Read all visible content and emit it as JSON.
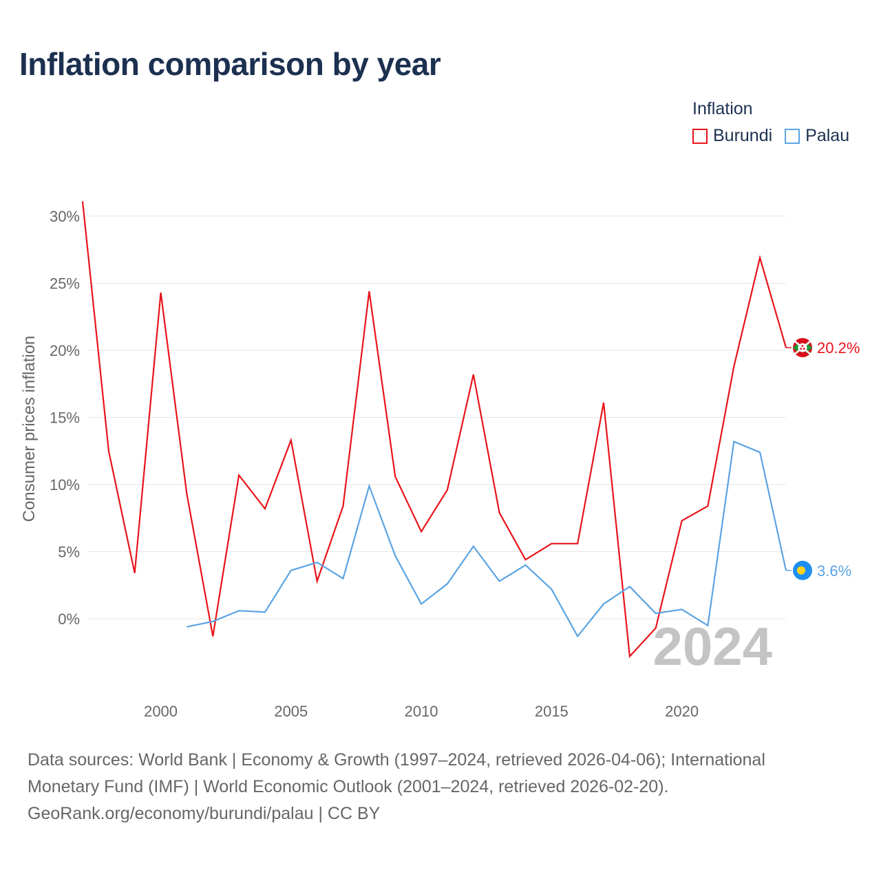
{
  "title": "Inflation comparison by year",
  "legend": {
    "title": "Inflation",
    "items": [
      {
        "label": "Burundi",
        "color": "#e8131a"
      },
      {
        "label": "Palau",
        "color": "#5aa3e3"
      }
    ]
  },
  "footer": {
    "line1": "Data sources: World Bank | Economy & Growth (1997–2024, retrieved 2026-04-06); International",
    "line2": "Monetary Fund (IMF) | World Economic Outlook (2001–2024, retrieved 2026-02-20).",
    "line3": "GeoRank.org/economy/burundi/palau | CC BY"
  },
  "chart_data": {
    "type": "line",
    "title": "Inflation comparison by year",
    "xlabel": "",
    "ylabel": "Consumer prices inflation",
    "xlim": [
      1997,
      2024
    ],
    "ylim": [
      -5.5,
      32
    ],
    "yticks": [
      0,
      5,
      10,
      15,
      20,
      25,
      30
    ],
    "ytick_labels": [
      "0%",
      "5%",
      "10%",
      "15%",
      "20%",
      "25%",
      "30%"
    ],
    "xticks": [
      2000,
      2005,
      2010,
      2015,
      2020
    ],
    "xtick_labels": [
      "2000",
      "2005",
      "2010",
      "2015",
      "2020"
    ],
    "watermark": "2024",
    "series": [
      {
        "name": "Burundi",
        "color": "#e8131a",
        "x": [
          1997,
          1998,
          1999,
          2000,
          2001,
          2002,
          2003,
          2004,
          2005,
          2006,
          2007,
          2008,
          2009,
          2010,
          2011,
          2012,
          2013,
          2014,
          2015,
          2016,
          2017,
          2018,
          2019,
          2020,
          2021,
          2022,
          2023,
          2024
        ],
        "values": [
          31.1,
          12.5,
          3.4,
          24.3,
          9.3,
          -1.3,
          10.7,
          8.2,
          13.3,
          2.8,
          8.4,
          24.4,
          10.6,
          6.5,
          9.6,
          18.2,
          7.9,
          4.4,
          5.6,
          5.6,
          16.1,
          -2.8,
          -0.7,
          7.3,
          8.4,
          18.8,
          26.9,
          20.2
        ],
        "end_label": "20.2%"
      },
      {
        "name": "Palau",
        "color": "#5aa3e3",
        "x": [
          2001,
          2002,
          2003,
          2004,
          2005,
          2006,
          2007,
          2008,
          2009,
          2010,
          2011,
          2012,
          2013,
          2014,
          2015,
          2016,
          2017,
          2018,
          2019,
          2020,
          2021,
          2022,
          2023,
          2024
        ],
        "values": [
          -0.6,
          -0.2,
          0.6,
          0.5,
          3.6,
          4.2,
          3.0,
          9.9,
          4.7,
          1.1,
          2.6,
          5.4,
          2.8,
          4.0,
          2.2,
          -1.3,
          1.1,
          2.4,
          0.4,
          0.7,
          -0.5,
          13.2,
          12.4,
          3.6
        ],
        "end_label": "3.6%"
      }
    ]
  }
}
